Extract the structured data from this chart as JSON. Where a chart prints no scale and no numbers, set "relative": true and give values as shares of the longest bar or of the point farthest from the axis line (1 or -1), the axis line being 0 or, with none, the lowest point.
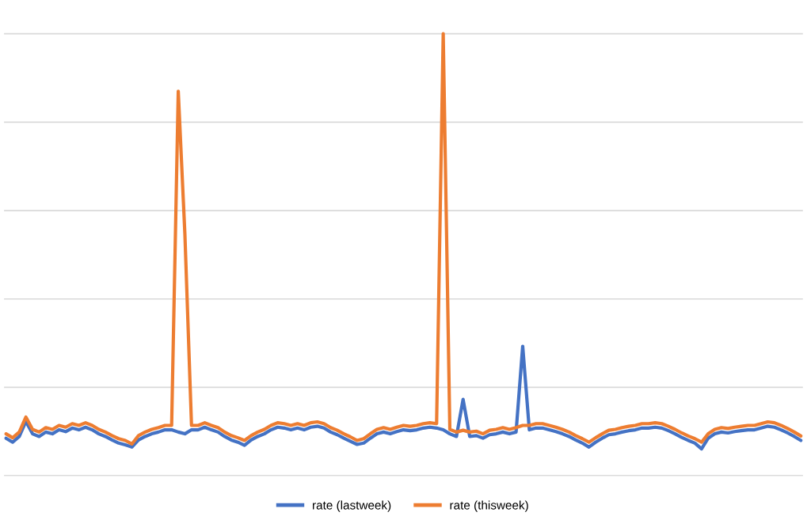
{
  "chart_data": {
    "type": "line",
    "relative": true,
    "grid": "y",
    "legend": "bottom",
    "categories": [
      null,
      null,
      null,
      null,
      null,
      null,
      null,
      null,
      null,
      null,
      null,
      null,
      null,
      null,
      null,
      null,
      null,
      null,
      null,
      null,
      null,
      null,
      null,
      null,
      null,
      null,
      null,
      null,
      null,
      null,
      null,
      null,
      null,
      null,
      null,
      null,
      null,
      null,
      null,
      null,
      null,
      null,
      null,
      null,
      null,
      null,
      null,
      null,
      null,
      null,
      null,
      null,
      null,
      null,
      null,
      null,
      null,
      null,
      null,
      null,
      null,
      null,
      null,
      null,
      null,
      null,
      null,
      null,
      null,
      null,
      null,
      null,
      null,
      null,
      null,
      null,
      null,
      null,
      null,
      null,
      null,
      null,
      null,
      null,
      null,
      null,
      null,
      null,
      null,
      null,
      null,
      null,
      null,
      null,
      null,
      null,
      null,
      null,
      null,
      null,
      null,
      null,
      null,
      null,
      null,
      null,
      null,
      null,
      null,
      null,
      null,
      null,
      null,
      null,
      null,
      null,
      null,
      null,
      null,
      null,
      null
    ],
    "series": [
      {
        "name": "rate (lastweek)",
        "color": "#4472c4",
        "values": [
          0.085,
          0.076,
          0.089,
          0.123,
          0.095,
          0.089,
          0.099,
          0.095,
          0.104,
          0.1,
          0.108,
          0.104,
          0.11,
          0.104,
          0.095,
          0.089,
          0.081,
          0.074,
          0.07,
          0.065,
          0.081,
          0.089,
          0.095,
          0.099,
          0.104,
          0.104,
          0.099,
          0.095,
          0.104,
          0.104,
          0.11,
          0.104,
          0.099,
          0.089,
          0.081,
          0.076,
          0.069,
          0.081,
          0.089,
          0.095,
          0.104,
          0.11,
          0.108,
          0.104,
          0.108,
          0.104,
          0.11,
          0.112,
          0.108,
          0.099,
          0.093,
          0.085,
          0.078,
          0.071,
          0.074,
          0.085,
          0.095,
          0.099,
          0.095,
          0.1,
          0.104,
          0.102,
          0.104,
          0.108,
          0.11,
          0.108,
          0.104,
          0.095,
          0.089,
          0.173,
          0.089,
          0.091,
          0.085,
          0.093,
          0.095,
          0.099,
          0.095,
          0.099,
          0.293,
          0.104,
          0.108,
          0.108,
          0.104,
          0.1,
          0.095,
          0.089,
          0.081,
          0.074,
          0.065,
          0.076,
          0.085,
          0.093,
          0.095,
          0.099,
          0.102,
          0.104,
          0.108,
          0.108,
          0.11,
          0.108,
          0.102,
          0.095,
          0.087,
          0.08,
          0.074,
          0.061,
          0.085,
          0.095,
          0.099,
          0.097,
          0.1,
          0.102,
          0.104,
          0.104,
          0.108,
          0.112,
          0.11,
          0.104,
          0.097,
          0.089,
          0.08
        ]
      },
      {
        "name": "rate (thisweek)",
        "color": "#ed7d31",
        "values": [
          0.095,
          0.086,
          0.099,
          0.133,
          0.105,
          0.099,
          0.109,
          0.105,
          0.114,
          0.11,
          0.118,
          0.114,
          0.12,
          0.114,
          0.105,
          0.099,
          0.091,
          0.084,
          0.08,
          0.072,
          0.091,
          0.099,
          0.105,
          0.109,
          0.114,
          0.114,
          0.87,
          0.547,
          0.114,
          0.114,
          0.12,
          0.114,
          0.109,
          0.099,
          0.091,
          0.086,
          0.08,
          0.091,
          0.099,
          0.105,
          0.114,
          0.12,
          0.118,
          0.114,
          0.118,
          0.114,
          0.12,
          0.122,
          0.118,
          0.109,
          0.103,
          0.095,
          0.088,
          0.08,
          0.084,
          0.095,
          0.105,
          0.109,
          0.105,
          0.11,
          0.114,
          0.112,
          0.114,
          0.118,
          0.12,
          0.118,
          1.0,
          0.105,
          0.099,
          0.103,
          0.099,
          0.101,
          0.095,
          0.103,
          0.105,
          0.109,
          0.105,
          0.109,
          0.114,
          0.114,
          0.118,
          0.118,
          0.114,
          0.11,
          0.105,
          0.099,
          0.091,
          0.084,
          0.076,
          0.086,
          0.095,
          0.103,
          0.105,
          0.109,
          0.112,
          0.114,
          0.118,
          0.118,
          0.12,
          0.118,
          0.112,
          0.105,
          0.097,
          0.09,
          0.084,
          0.076,
          0.095,
          0.105,
          0.109,
          0.107,
          0.11,
          0.112,
          0.114,
          0.114,
          0.118,
          0.122,
          0.12,
          0.114,
          0.107,
          0.099,
          0.09
        ]
      }
    ]
  }
}
